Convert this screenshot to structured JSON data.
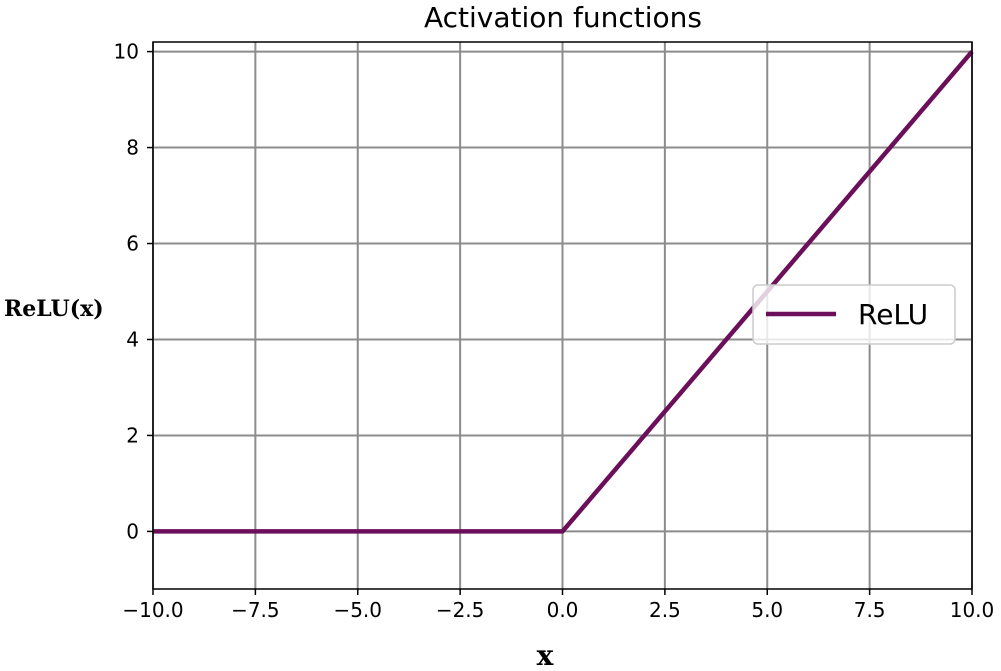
{
  "chart_data": {
    "type": "line",
    "title": "Activation functions",
    "xlabel": "x",
    "ylabel": "ReLU(x)",
    "xlim": [
      -10,
      10
    ],
    "ylim": [
      -1.2,
      10.2
    ],
    "xticks": [
      -10,
      -7.5,
      -5,
      -2.5,
      0,
      2.5,
      5,
      7.5,
      10
    ],
    "xtick_labels": [
      "−10.0",
      "−7.5",
      "−5.0",
      "−2.5",
      "0.0",
      "2.5",
      "5.0",
      "7.5",
      "10.0"
    ],
    "yticks": [
      0,
      2,
      4,
      6,
      8,
      10
    ],
    "ytick_labels": [
      "0",
      "2",
      "4",
      "6",
      "8",
      "10"
    ],
    "grid": true,
    "legend_position": "center-right",
    "series": [
      {
        "name": "ReLU",
        "color": "#6b0f5a",
        "x": [
          -10,
          0,
          10
        ],
        "y": [
          0,
          0,
          10
        ]
      }
    ]
  }
}
